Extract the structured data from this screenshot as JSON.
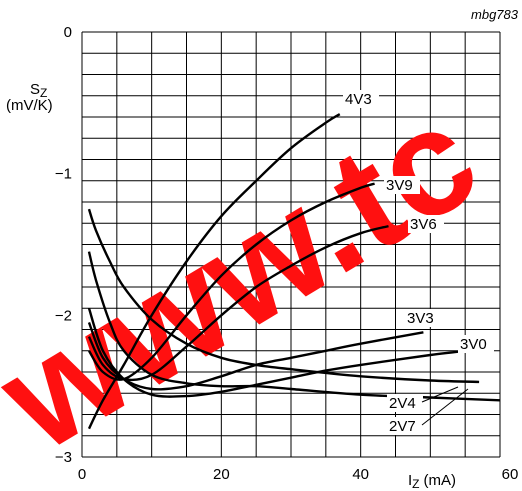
{
  "figure_ref": "mbg783",
  "watermark": "www.tc",
  "chart_data": {
    "type": "line",
    "title": "",
    "xlabel": "I",
    "xlabel_sub": "Z",
    "xlabel_unit": "(mA)",
    "ylabel": "S",
    "ylabel_sub": "Z",
    "ylabel_unit": "(mV/K)",
    "xlim": [
      0,
      60
    ],
    "ylim": [
      -3,
      0
    ],
    "x_ticks": [
      0,
      20,
      40,
      60
    ],
    "x_tick_labels": [
      "0",
      "20",
      "40",
      "60"
    ],
    "y_ticks": [
      0,
      -1,
      -2,
      -3
    ],
    "y_tick_labels": [
      "0",
      "−1",
      "−2",
      "−3"
    ],
    "grid": true,
    "series": [
      {
        "name": "4V3",
        "x": [
          1,
          3,
          6,
          10,
          15,
          20,
          25,
          30,
          35,
          37
        ],
        "y": [
          -2.8,
          -2.6,
          -2.35,
          -2.0,
          -1.62,
          -1.3,
          -1.05,
          -0.82,
          -0.64,
          -0.58
        ]
      },
      {
        "name": "3V9",
        "x": [
          1,
          3,
          6,
          10,
          15,
          20,
          25,
          30,
          35,
          40,
          42
        ],
        "y": [
          -2.25,
          -2.4,
          -2.45,
          -2.3,
          -2.0,
          -1.72,
          -1.5,
          -1.33,
          -1.2,
          -1.1,
          -1.07
        ]
      },
      {
        "name": "3V6",
        "x": [
          1,
          3,
          6,
          10,
          15,
          20,
          25,
          30,
          35,
          40,
          44
        ],
        "y": [
          -2.15,
          -2.35,
          -2.45,
          -2.42,
          -2.22,
          -2.0,
          -1.8,
          -1.65,
          -1.52,
          -1.42,
          -1.37
        ]
      },
      {
        "name": "3V3",
        "x": [
          1,
          3,
          6,
          10,
          15,
          20,
          25,
          30,
          35,
          40,
          49
        ],
        "y": [
          -2.05,
          -2.3,
          -2.45,
          -2.52,
          -2.5,
          -2.43,
          -2.35,
          -2.3,
          -2.25,
          -2.2,
          -2.12
        ]
      },
      {
        "name": "3V0",
        "x": [
          1,
          3,
          6,
          10,
          15,
          20,
          25,
          30,
          35,
          40,
          50,
          57
        ],
        "y": [
          -1.95,
          -2.25,
          -2.45,
          -2.56,
          -2.57,
          -2.54,
          -2.49,
          -2.44,
          -2.39,
          -2.35,
          -2.28,
          -2.24
        ]
      },
      {
        "name": "2V4",
        "x": [
          1,
          2,
          4,
          6,
          10,
          15,
          20,
          25,
          30,
          40,
          50,
          57
        ],
        "y": [
          -1.25,
          -1.4,
          -1.62,
          -1.8,
          -2.03,
          -2.2,
          -2.3,
          -2.35,
          -2.38,
          -2.43,
          -2.46,
          -2.47
        ]
      },
      {
        "name": "2V7",
        "x": [
          1,
          2,
          4,
          6,
          10,
          15,
          20,
          25,
          30,
          40,
          50,
          60
        ],
        "y": [
          -1.55,
          -1.75,
          -2.05,
          -2.25,
          -2.42,
          -2.48,
          -2.5,
          -2.5,
          -2.52,
          -2.56,
          -2.58,
          -2.6
        ]
      }
    ]
  }
}
